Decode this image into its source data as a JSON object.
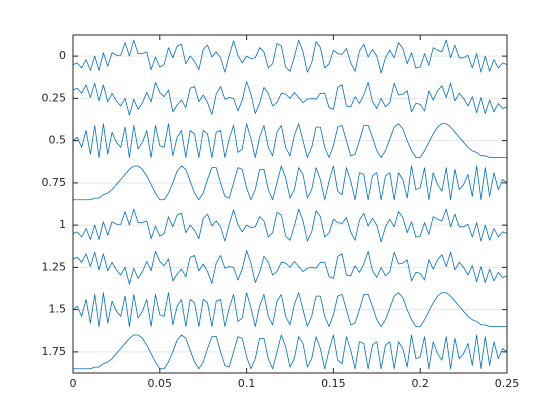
{
  "chart_data": {
    "type": "line",
    "x": [
      0,
      0.0025,
      0.005,
      0.0075,
      0.01,
      0.0125,
      0.015,
      0.0175,
      0.02,
      0.0225,
      0.025,
      0.0275,
      0.03,
      0.0325,
      0.035,
      0.0375,
      0.04,
      0.0425,
      0.045,
      0.0475,
      0.05,
      0.0525,
      0.055,
      0.0575,
      0.06,
      0.0625,
      0.065,
      0.0675,
      0.07,
      0.0725,
      0.075,
      0.0775,
      0.08,
      0.0825,
      0.085,
      0.0875,
      0.09,
      0.0925,
      0.095,
      0.0975,
      0.1,
      0.1025,
      0.105,
      0.1075,
      0.11,
      0.1125,
      0.115,
      0.1175,
      0.12,
      0.1225,
      0.125,
      0.1275,
      0.13,
      0.1325,
      0.135,
      0.1375,
      0.14,
      0.1425,
      0.145,
      0.1475,
      0.15,
      0.1525,
      0.155,
      0.1575,
      0.16,
      0.1625,
      0.165,
      0.1675,
      0.17,
      0.1725,
      0.175,
      0.1775,
      0.18,
      0.1825,
      0.185,
      0.1875,
      0.19,
      0.1925,
      0.195,
      0.1975,
      0.2,
      0.2025,
      0.205,
      0.2075,
      0.21,
      0.2125,
      0.215,
      0.2175,
      0.22,
      0.2225,
      0.225,
      0.2275,
      0.23,
      0.2325,
      0.235,
      0.2375,
      0.24,
      0.2425,
      0.245,
      0.2475,
      0.25
    ],
    "series": [
      {
        "color": "#0072bd",
        "values": [
          0.05,
          0.04,
          0.07,
          0.02,
          0.085,
          0,
          0.085,
          -0.02,
          0.06,
          -0.02,
          -0.005,
          -0.005,
          -0.08,
          0,
          -0.095,
          -0.015,
          -0.015,
          -0.025,
          0.08,
          0.005,
          0.065,
          0.05,
          -0.05,
          0.01,
          -0.06,
          -0.07,
          0.045,
          0,
          0.03,
          0.08,
          -0.04,
          -0.065,
          0.005,
          -0.025,
          0.01,
          0.095,
          -0.005,
          -0.09,
          -0.005,
          0.04,
          0,
          0.015,
          0.01,
          -0.05,
          -0.025,
          0.07,
          0.045,
          -0.075,
          -0.06,
          0.065,
          0.09,
          0.005,
          -0.095,
          -0.025,
          0.095,
          0.04,
          -0.085,
          -0.05,
          0.07,
          0.045,
          -0.035,
          -0.015,
          -0.01,
          -0.045,
          0.04,
          0.09,
          -0.03,
          -0.07,
          0.005,
          -0.04,
          0,
          0.1,
          0.01,
          -0.035,
          0.01,
          -0.08,
          -0.045,
          0.045,
          -0.02,
          0.07,
          0.065,
          -0.015,
          0.055,
          -0.05,
          -0.035,
          -0.025,
          -0.095,
          0.01,
          -0.065,
          0.01,
          0.01,
          -0.005,
          0.07,
          -0.015,
          0.095,
          0,
          0.09,
          0.02,
          0.07,
          0.04,
          0.05
        ]
      },
      {
        "color": "#0072bd",
        "values": [
          0.2,
          0.19,
          0.22,
          0.17,
          0.245,
          0.16,
          0.265,
          0.17,
          0.27,
          0.22,
          0.265,
          0.295,
          0.25,
          0.35,
          0.255,
          0.315,
          0.275,
          0.215,
          0.27,
          0.155,
          0.215,
          0.24,
          0.2,
          0.33,
          0.29,
          0.26,
          0.305,
          0.19,
          0.18,
          0.27,
          0.23,
          0.275,
          0.345,
          0.225,
          0.18,
          0.255,
          0.245,
          0.25,
          0.325,
          0.26,
          0.15,
          0.225,
          0.34,
          0.28,
          0.185,
          0.22,
          0.295,
          0.275,
          0.22,
          0.225,
          0.25,
          0.215,
          0.245,
          0.275,
          0.255,
          0.25,
          0.255,
          0.22,
          0.22,
          0.305,
          0.315,
          0.185,
          0.17,
          0.295,
          0.3,
          0.24,
          0.28,
          0.23,
          0.155,
          0.27,
          0.31,
          0.25,
          0.3,
          0.275,
          0.16,
          0.23,
          0.225,
          0.205,
          0.33,
          0.28,
          0.285,
          0.325,
          0.205,
          0.26,
          0.205,
          0.175,
          0.245,
          0.16,
          0.265,
          0.22,
          0.25,
          0.295,
          0.24,
          0.335,
          0.245,
          0.34,
          0.26,
          0.33,
          0.28,
          0.31,
          0.3
        ]
      },
      {
        "color": "#0072bd",
        "values": [
          0.5,
          0.48,
          0.54,
          0.44,
          0.58,
          0.41,
          0.6,
          0.4,
          0.58,
          0.45,
          0.51,
          0.54,
          0.42,
          0.6,
          0.41,
          0.55,
          0.51,
          0.44,
          0.6,
          0.41,
          0.53,
          0.54,
          0.4,
          0.59,
          0.48,
          0.44,
          0.6,
          0.44,
          0.46,
          0.6,
          0.44,
          0.46,
          0.6,
          0.45,
          0.44,
          0.6,
          0.49,
          0.41,
          0.57,
          0.55,
          0.4,
          0.49,
          0.6,
          0.48,
          0.41,
          0.54,
          0.59,
          0.45,
          0.41,
          0.54,
          0.59,
          0.47,
          0.4,
          0.5,
          0.6,
          0.54,
          0.42,
          0.42,
          0.54,
          0.6,
          0.53,
          0.42,
          0.41,
          0.5,
          0.59,
          0.58,
          0.5,
          0.41,
          0.41,
          0.48,
          0.56,
          0.6,
          0.56,
          0.49,
          0.42,
          0.4,
          0.43,
          0.5,
          0.56,
          0.6,
          0.6,
          0.56,
          0.51,
          0.46,
          0.42,
          0.4,
          0.4,
          0.42,
          0.45,
          0.48,
          0.51,
          0.54,
          0.56,
          0.57,
          0.59,
          0.59,
          0.6,
          0.6,
          0.6,
          0.6,
          0.6
        ]
      },
      {
        "color": "#0072bd",
        "values": [
          0.85,
          0.85,
          0.85,
          0.85,
          0.85,
          0.84,
          0.84,
          0.82,
          0.81,
          0.79,
          0.76,
          0.73,
          0.7,
          0.67,
          0.65,
          0.65,
          0.67,
          0.71,
          0.76,
          0.81,
          0.85,
          0.85,
          0.81,
          0.75,
          0.68,
          0.65,
          0.67,
          0.74,
          0.81,
          0.85,
          0.81,
          0.73,
          0.66,
          0.66,
          0.75,
          0.83,
          0.84,
          0.75,
          0.66,
          0.67,
          0.78,
          0.85,
          0.79,
          0.67,
          0.67,
          0.79,
          0.85,
          0.75,
          0.65,
          0.72,
          0.84,
          0.79,
          0.66,
          0.7,
          0.84,
          0.79,
          0.66,
          0.73,
          0.85,
          0.74,
          0.65,
          0.8,
          0.82,
          0.66,
          0.74,
          0.85,
          0.69,
          0.7,
          0.85,
          0.71,
          0.69,
          0.85,
          0.71,
          0.69,
          0.85,
          0.69,
          0.73,
          0.84,
          0.65,
          0.79,
          0.78,
          0.66,
          0.85,
          0.69,
          0.76,
          0.8,
          0.66,
          0.85,
          0.67,
          0.79,
          0.76,
          0.7,
          0.83,
          0.65,
          0.85,
          0.66,
          0.83,
          0.69,
          0.79,
          0.73,
          0.75
        ]
      },
      {
        "color": "#0072bd",
        "values": [
          1.05,
          1.04,
          1.07,
          1.02,
          1.085,
          1,
          1.085,
          0.98,
          1.06,
          0.98,
          0.995,
          0.995,
          0.92,
          1,
          0.905,
          0.985,
          0.985,
          0.975,
          1.08,
          1.005,
          1.065,
          1.05,
          0.95,
          1.01,
          0.94,
          0.93,
          1.045,
          1,
          1.03,
          1.08,
          0.96,
          0.935,
          1.005,
          0.975,
          1.01,
          1.095,
          0.995,
          0.91,
          0.995,
          1.04,
          1,
          1.015,
          1.01,
          0.95,
          0.975,
          1.07,
          1.045,
          0.925,
          0.94,
          1.065,
          1.09,
          1.005,
          0.905,
          0.975,
          1.095,
          1.04,
          0.915,
          0.95,
          1.07,
          1.045,
          0.965,
          0.985,
          0.99,
          0.955,
          1.04,
          1.09,
          0.97,
          0.93,
          1.005,
          0.96,
          1,
          1.1,
          1.01,
          0.965,
          1.01,
          0.92,
          0.955,
          1.045,
          0.98,
          1.07,
          1.065,
          0.985,
          1.055,
          0.95,
          0.965,
          0.975,
          0.905,
          1.01,
          0.935,
          1.01,
          1.01,
          0.995,
          1.07,
          0.985,
          1.095,
          1,
          1.09,
          1.02,
          1.07,
          1.04,
          1.05
        ]
      },
      {
        "color": "#0072bd",
        "values": [
          1.2,
          1.19,
          1.22,
          1.17,
          1.245,
          1.16,
          1.265,
          1.17,
          1.27,
          1.22,
          1.265,
          1.295,
          1.25,
          1.35,
          1.255,
          1.315,
          1.275,
          1.215,
          1.27,
          1.155,
          1.215,
          1.24,
          1.2,
          1.33,
          1.29,
          1.26,
          1.305,
          1.19,
          1.18,
          1.27,
          1.23,
          1.275,
          1.345,
          1.225,
          1.18,
          1.255,
          1.245,
          1.25,
          1.325,
          1.26,
          1.15,
          1.225,
          1.34,
          1.28,
          1.185,
          1.22,
          1.295,
          1.275,
          1.22,
          1.225,
          1.25,
          1.215,
          1.245,
          1.275,
          1.255,
          1.25,
          1.255,
          1.22,
          1.22,
          1.305,
          1.315,
          1.185,
          1.17,
          1.295,
          1.3,
          1.24,
          1.28,
          1.23,
          1.155,
          1.27,
          1.31,
          1.25,
          1.3,
          1.275,
          1.16,
          1.23,
          1.225,
          1.205,
          1.33,
          1.28,
          1.285,
          1.325,
          1.205,
          1.26,
          1.205,
          1.175,
          1.245,
          1.16,
          1.265,
          1.22,
          1.25,
          1.295,
          1.24,
          1.335,
          1.245,
          1.34,
          1.26,
          1.33,
          1.28,
          1.31,
          1.3
        ]
      },
      {
        "color": "#0072bd",
        "values": [
          1.5,
          1.48,
          1.54,
          1.44,
          1.58,
          1.41,
          1.6,
          1.4,
          1.58,
          1.45,
          1.51,
          1.54,
          1.42,
          1.6,
          1.41,
          1.55,
          1.51,
          1.44,
          1.6,
          1.41,
          1.53,
          1.54,
          1.4,
          1.59,
          1.48,
          1.44,
          1.6,
          1.44,
          1.46,
          1.6,
          1.44,
          1.46,
          1.6,
          1.45,
          1.44,
          1.6,
          1.49,
          1.41,
          1.57,
          1.55,
          1.4,
          1.49,
          1.6,
          1.48,
          1.41,
          1.54,
          1.59,
          1.45,
          1.41,
          1.54,
          1.59,
          1.47,
          1.4,
          1.5,
          1.6,
          1.54,
          1.42,
          1.42,
          1.54,
          1.6,
          1.53,
          1.42,
          1.41,
          1.5,
          1.59,
          1.58,
          1.5,
          1.41,
          1.41,
          1.48,
          1.56,
          1.6,
          1.56,
          1.49,
          1.42,
          1.4,
          1.43,
          1.5,
          1.56,
          1.6,
          1.6,
          1.56,
          1.51,
          1.46,
          1.42,
          1.4,
          1.4,
          1.42,
          1.45,
          1.48,
          1.51,
          1.54,
          1.56,
          1.57,
          1.59,
          1.59,
          1.6,
          1.6,
          1.6,
          1.6,
          1.6
        ]
      },
      {
        "color": "#0072bd",
        "values": [
          1.85,
          1.85,
          1.85,
          1.85,
          1.85,
          1.84,
          1.84,
          1.82,
          1.81,
          1.79,
          1.76,
          1.73,
          1.7,
          1.67,
          1.65,
          1.65,
          1.67,
          1.71,
          1.76,
          1.81,
          1.85,
          1.85,
          1.81,
          1.75,
          1.68,
          1.65,
          1.67,
          1.74,
          1.81,
          1.85,
          1.81,
          1.73,
          1.66,
          1.66,
          1.75,
          1.83,
          1.84,
          1.75,
          1.66,
          1.67,
          1.78,
          1.85,
          1.79,
          1.67,
          1.67,
          1.79,
          1.85,
          1.75,
          1.65,
          1.72,
          1.84,
          1.79,
          1.66,
          1.7,
          1.84,
          1.79,
          1.66,
          1.73,
          1.85,
          1.74,
          1.65,
          1.8,
          1.82,
          1.66,
          1.74,
          1.85,
          1.69,
          1.7,
          1.85,
          1.71,
          1.69,
          1.85,
          1.71,
          1.69,
          1.85,
          1.69,
          1.73,
          1.84,
          1.65,
          1.79,
          1.78,
          1.66,
          1.85,
          1.69,
          1.76,
          1.8,
          1.66,
          1.85,
          1.67,
          1.79,
          1.76,
          1.7,
          1.83,
          1.65,
          1.85,
          1.66,
          1.83,
          1.69,
          1.79,
          1.73,
          1.75
        ]
      }
    ],
    "xlim": [
      0,
      0.25
    ],
    "xticks": [
      0,
      0.05,
      0.1,
      0.15,
      0.2,
      0.25
    ],
    "ylim": [
      -0.125,
      1.875
    ],
    "yticks": [
      0,
      0.25,
      0.5,
      0.75,
      1,
      1.25,
      1.5,
      1.75
    ],
    "y_direction": "reverse",
    "grid": true
  }
}
